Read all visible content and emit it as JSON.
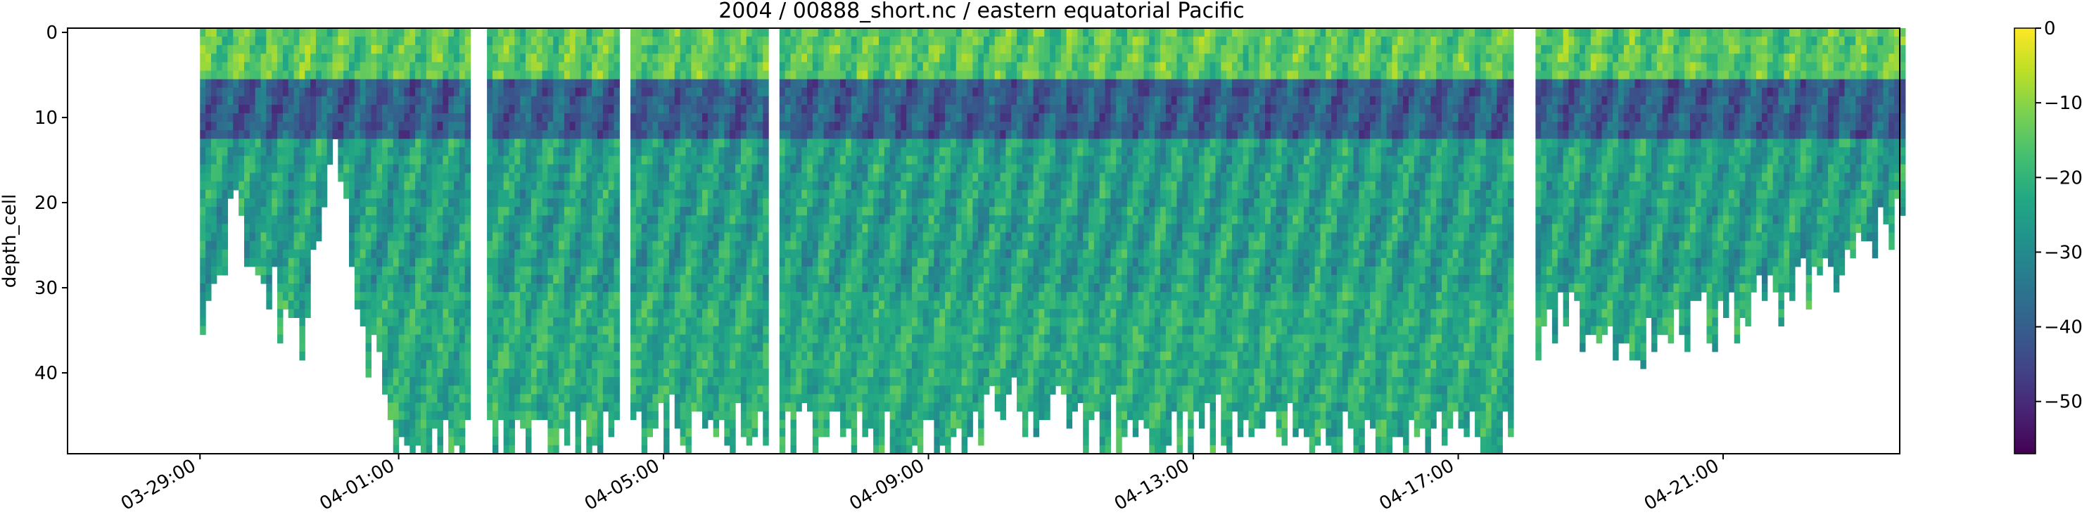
{
  "chart_data": {
    "type": "heatmap",
    "title": "2004 / 00888_short.nc / eastern equatorial Pacific",
    "xlabel": "",
    "ylabel": "depth_cell",
    "x_start": "2004-03-27T00:00",
    "x_end": "2004-04-23T16:00",
    "x_ticks": [
      {
        "date": "2004-03-29T00:00",
        "label": "03-29:00"
      },
      {
        "date": "2004-04-01T00:00",
        "label": "04-01:00"
      },
      {
        "date": "2004-04-05T00:00",
        "label": "04-05:00"
      },
      {
        "date": "2004-04-09T00:00",
        "label": "04-09:00"
      },
      {
        "date": "2004-04-13T00:00",
        "label": "04-13:00"
      },
      {
        "date": "2004-04-17T00:00",
        "label": "04-17:00"
      },
      {
        "date": "2004-04-21T00:00",
        "label": "04-21:00"
      }
    ],
    "ylim": [
      49.5,
      -0.5
    ],
    "y_inverted": true,
    "y_ticks": [
      0,
      10,
      20,
      30,
      40
    ],
    "colorbar": {
      "colormap": "viridis",
      "range": [
        -57,
        0
      ],
      "ticks": [
        0,
        -10,
        -20,
        -30,
        -40,
        -50
      ],
      "tick_labels": [
        "0",
        "−10",
        "−20",
        "−30",
        "−40",
        "−50"
      ]
    },
    "data_span": {
      "first": "2004-03-29T00:00",
      "last": "2004-04-23T16:00"
    },
    "gaps": [
      {
        "from": "2004-04-02T01:00",
        "to": "2004-04-02T06:00"
      },
      {
        "from": "2004-04-04T08:00",
        "to": "2004-04-04T10:00"
      },
      {
        "from": "2004-04-06T13:00",
        "to": "2004-04-06T17:00"
      },
      {
        "from": "2004-04-17T20:00",
        "to": "2004-04-18T03:00"
      }
    ],
    "profile_bottom_depth_cells": [
      {
        "date": "2004-03-29T00:00",
        "depth": 34
      },
      {
        "date": "2004-03-29T12:00",
        "depth": 20
      },
      {
        "date": "2004-03-30T00:00",
        "depth": 31
      },
      {
        "date": "2004-03-30T12:00",
        "depth": 35
      },
      {
        "date": "2004-03-31T00:00",
        "depth": 16
      },
      {
        "date": "2004-03-31T12:00",
        "depth": 37
      },
      {
        "date": "2004-04-01T00:00",
        "depth": 49
      },
      {
        "date": "2004-04-01T12:00",
        "depth": 48
      },
      {
        "date": "2004-04-02T00:00",
        "depth": 49
      },
      {
        "date": "2004-04-02T12:00",
        "depth": 49
      },
      {
        "date": "2004-04-03T12:00",
        "depth": 48
      },
      {
        "date": "2004-04-04T12:00",
        "depth": 46
      },
      {
        "date": "2004-04-05T12:00",
        "depth": 46
      },
      {
        "date": "2004-04-06T06:00",
        "depth": 47
      },
      {
        "date": "2004-04-07T12:00",
        "depth": 48
      },
      {
        "date": "2004-04-08T12:00",
        "depth": 49
      },
      {
        "date": "2004-04-09T12:00",
        "depth": 47
      },
      {
        "date": "2004-04-10T12:00",
        "depth": 44
      },
      {
        "date": "2004-04-11T12:00",
        "depth": 46
      },
      {
        "date": "2004-04-12T12:00",
        "depth": 48
      },
      {
        "date": "2004-04-13T12:00",
        "depth": 46
      },
      {
        "date": "2004-04-14T12:00",
        "depth": 47
      },
      {
        "date": "2004-04-15T12:00",
        "depth": 48
      },
      {
        "date": "2004-04-16T12:00",
        "depth": 47
      },
      {
        "date": "2004-04-17T12:00",
        "depth": 49
      },
      {
        "date": "2004-04-18T12:00",
        "depth": 32
      },
      {
        "date": "2004-04-19T12:00",
        "depth": 38
      },
      {
        "date": "2004-04-20T12:00",
        "depth": 35
      },
      {
        "date": "2004-04-21T12:00",
        "depth": 32
      },
      {
        "date": "2004-04-22T12:00",
        "depth": 28
      },
      {
        "date": "2004-04-23T12:00",
        "depth": 22
      }
    ],
    "typical_values": {
      "surface_layer_0_5": -15,
      "upper_6_12": -40,
      "mid_13_30": -25,
      "deep_31_49": -22
    }
  }
}
